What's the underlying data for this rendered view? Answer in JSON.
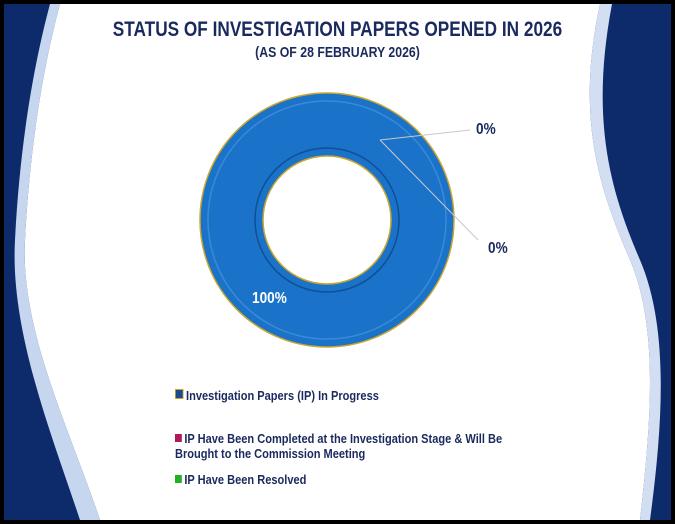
{
  "chart_data": {
    "type": "pie",
    "variant": "donut",
    "title": "STATUS OF INVESTIGATION PAPERS OPENED IN 2026",
    "subtitle": "(AS OF 28 FEBRUARY 2026)",
    "categories": [
      "Investigation Papers (IP) In Progress",
      "IP Have Been Completed at the Investigation Stage & Will Be Brought to the Commission Meeting",
      "IP Have Been Resolved"
    ],
    "values": [
      100,
      0,
      0
    ],
    "data_labels": [
      "100%",
      "0%",
      "0%"
    ],
    "colors": [
      "#1a73c8",
      "#b0185a",
      "#22b020"
    ],
    "legend_position": "bottom"
  }
}
